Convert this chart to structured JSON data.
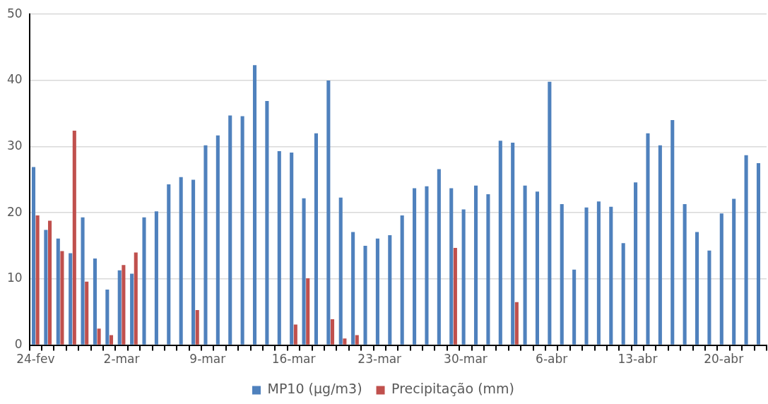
{
  "chart_data": {
    "type": "bar",
    "categories": [
      "24-fev",
      null,
      null,
      null,
      null,
      null,
      null,
      "2-mar",
      null,
      null,
      null,
      null,
      null,
      null,
      "9-mar",
      null,
      null,
      null,
      null,
      null,
      null,
      "16-mar",
      null,
      null,
      null,
      null,
      null,
      null,
      "23-mar",
      null,
      null,
      null,
      null,
      null,
      null,
      "30-mar",
      null,
      null,
      null,
      null,
      null,
      null,
      "6-abr",
      null,
      null,
      null,
      null,
      null,
      null,
      "13-abr",
      null,
      null,
      null,
      null,
      null,
      null,
      "20-abr",
      null,
      null,
      null
    ],
    "series": [
      {
        "name": "MP10 (µg/m3)",
        "color": "#4f81bd",
        "values": [
          26.9,
          17.4,
          16.1,
          13.9,
          19.3,
          13.1,
          8.4,
          11.3,
          10.8,
          19.3,
          20.2,
          24.3,
          25.4,
          25.0,
          30.2,
          31.7,
          34.7,
          34.6,
          42.3,
          36.9,
          29.3,
          29.1,
          22.2,
          32.0,
          40.0,
          22.3,
          17.1,
          15.0,
          16.1,
          16.6,
          19.6,
          23.7,
          24.0,
          26.6,
          23.7,
          20.5,
          24.1,
          22.8,
          30.9,
          30.6,
          24.1,
          23.2,
          39.8,
          21.3,
          11.4,
          20.8,
          21.7,
          20.9,
          15.4,
          24.6,
          32.0,
          30.2,
          34.0,
          21.3,
          17.1,
          14.3,
          19.9,
          22.1,
          28.7,
          27.5
        ]
      },
      {
        "name": "Precipitação (mm)",
        "color": "#c0504d",
        "values": [
          19.6,
          18.8,
          14.2,
          32.4,
          9.6,
          2.5,
          1.5,
          12.1,
          14.0,
          null,
          null,
          null,
          null,
          5.3,
          null,
          null,
          null,
          null,
          null,
          null,
          null,
          3.1,
          10.1,
          null,
          3.9,
          1.0,
          1.5,
          null,
          null,
          null,
          null,
          null,
          null,
          null,
          14.7,
          null,
          null,
          null,
          null,
          6.5,
          null,
          null,
          null,
          null,
          null,
          null,
          null,
          null,
          null,
          null,
          null,
          null,
          null,
          null,
          null,
          null,
          null,
          null,
          null,
          null
        ]
      }
    ],
    "ylim": [
      0,
      50
    ],
    "yticks": [
      0,
      10,
      20,
      30,
      40,
      50
    ],
    "grid": "y",
    "legend": "bottom"
  }
}
